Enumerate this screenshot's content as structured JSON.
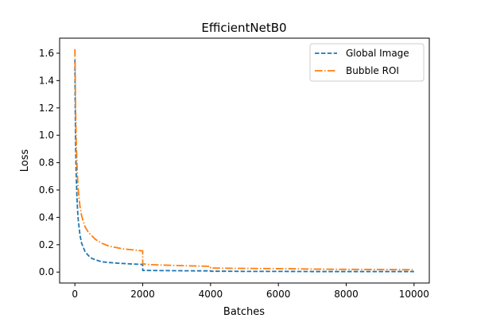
{
  "chart_data": {
    "type": "line",
    "title": "EfficientNetB0",
    "xlabel": "Batches",
    "ylabel": "Loss",
    "xlim": [
      -450,
      10450
    ],
    "ylim": [
      -0.08,
      1.71
    ],
    "xticks": [
      0,
      2000,
      4000,
      6000,
      8000,
      10000
    ],
    "yticks": [
      0.0,
      0.2,
      0.4,
      0.6,
      0.8,
      1.0,
      1.2,
      1.4,
      1.6
    ],
    "xtick_labels": [
      "0",
      "2000",
      "4000",
      "6000",
      "8000",
      "10000"
    ],
    "ytick_labels": [
      "0.0",
      "0.2",
      "0.4",
      "0.6",
      "0.8",
      "1.0",
      "1.2",
      "1.4",
      "1.6"
    ],
    "legend_position": "top-right",
    "grid": false,
    "series": [
      {
        "name": "Global Image",
        "color": "#1f77b4",
        "style": "dashed",
        "x": [
          0,
          10,
          20,
          40,
          60,
          80,
          100,
          150,
          200,
          300,
          400,
          500,
          600,
          800,
          1000,
          1200,
          1400,
          1600,
          1800,
          1999,
          2000,
          2100,
          2500,
          3000,
          3500,
          3999,
          4000,
          4500,
          5000,
          6000,
          7000,
          8000,
          9000,
          10000
        ],
        "y": [
          1.55,
          1.2,
          0.95,
          0.7,
          0.55,
          0.45,
          0.38,
          0.27,
          0.21,
          0.15,
          0.12,
          0.1,
          0.09,
          0.075,
          0.07,
          0.066,
          0.063,
          0.06,
          0.058,
          0.056,
          0.012,
          0.012,
          0.011,
          0.01,
          0.009,
          0.009,
          0.006,
          0.006,
          0.005,
          0.005,
          0.004,
          0.004,
          0.004,
          0.004
        ]
      },
      {
        "name": "Bubble ROI",
        "color": "#ff7f0e",
        "style": "dashdot",
        "x": [
          0,
          10,
          20,
          40,
          60,
          80,
          100,
          150,
          200,
          300,
          400,
          600,
          800,
          1000,
          1200,
          1400,
          1600,
          1800,
          1999,
          2000,
          2200,
          2500,
          3000,
          3500,
          3999,
          4000,
          4500,
          5000,
          6000,
          7000,
          8000,
          9000,
          10000
        ],
        "y": [
          1.63,
          1.45,
          1.2,
          0.95,
          0.8,
          0.68,
          0.6,
          0.48,
          0.41,
          0.33,
          0.29,
          0.24,
          0.21,
          0.19,
          0.18,
          0.17,
          0.165,
          0.16,
          0.155,
          0.06,
          0.055,
          0.052,
          0.048,
          0.045,
          0.042,
          0.03,
          0.028,
          0.027,
          0.025,
          0.022,
          0.02,
          0.019,
          0.017
        ]
      }
    ]
  }
}
